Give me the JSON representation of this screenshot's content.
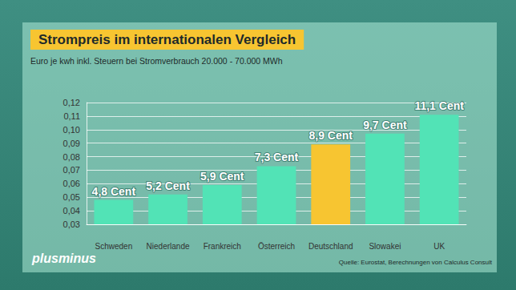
{
  "chart_data": {
    "type": "bar",
    "title": "Strompreis im internationalen Vergleich",
    "subtitle": "Euro je kwh inkl. Steuern bei Stromverbrauch 20.000 - 70.000 MWh",
    "source": "Quelle: Eurostat, Berechnungen von Calculus Consult",
    "branding": "plusminus",
    "categories": [
      "Schweden",
      "Niederlande",
      "Frankreich",
      "Österreich",
      "Deutschland",
      "Slowakei",
      "UK"
    ],
    "values": [
      0.048,
      0.052,
      0.059,
      0.073,
      0.089,
      0.097,
      0.111
    ],
    "value_labels": [
      "4,8 Cent",
      "5,2 Cent",
      "5,9 Cent",
      "7,3 Cent",
      "8,9 Cent",
      "9,7 Cent",
      "11,1 Cent"
    ],
    "colors": [
      "#52e3b6",
      "#52e3b6",
      "#52e3b6",
      "#52e3b6",
      "#f7c531",
      "#52e3b6",
      "#52e3b6"
    ],
    "data_labels": true,
    "grid": true,
    "ylim": [
      0.03,
      0.12
    ],
    "yticks": [
      {
        "value": 0.03,
        "label": "0,03"
      },
      {
        "value": 0.04,
        "label": "0,04"
      },
      {
        "value": 0.05,
        "label": "0,05"
      },
      {
        "value": 0.06,
        "label": "0,06"
      },
      {
        "value": 0.07,
        "label": "0,07"
      },
      {
        "value": 0.08,
        "label": "0,08"
      },
      {
        "value": 0.09,
        "label": "0,09"
      },
      {
        "value": 0.1,
        "label": "0,10"
      },
      {
        "value": 0.11,
        "label": "0,11"
      },
      {
        "value": 0.12,
        "label": "0,12"
      }
    ]
  }
}
